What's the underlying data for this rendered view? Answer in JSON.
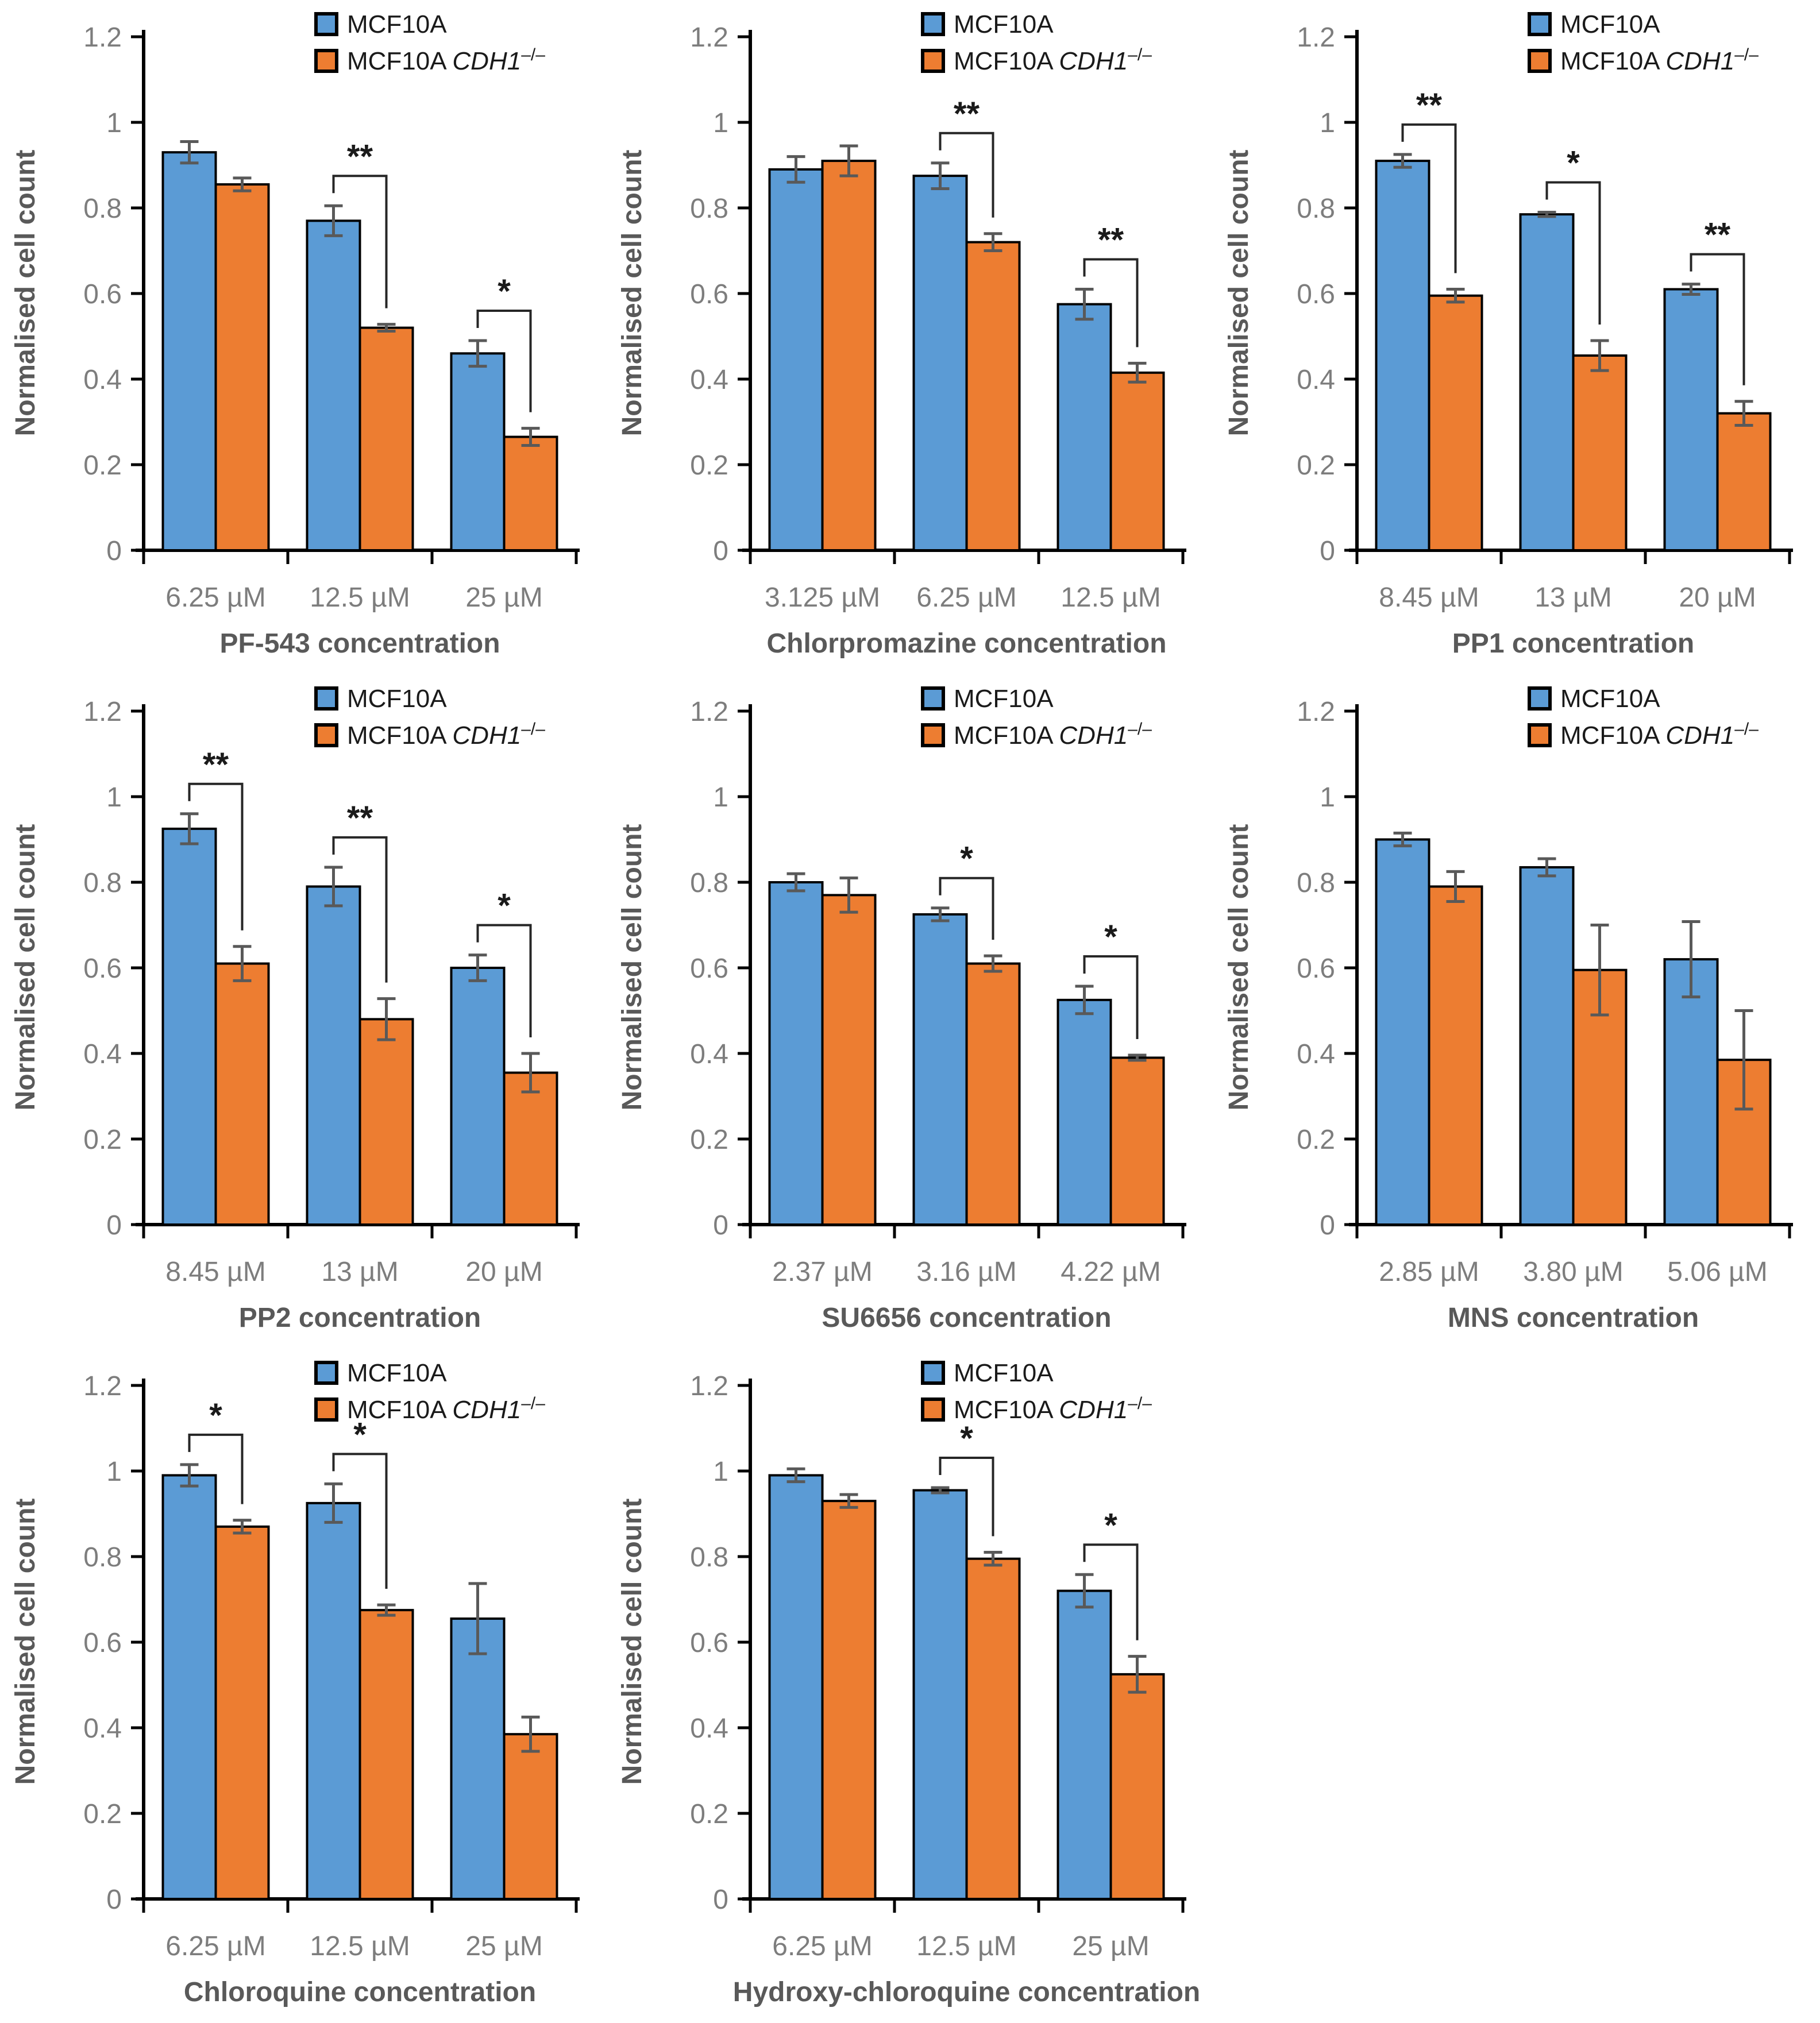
{
  "figure": {
    "ylabel": "Normalised cell count",
    "ylim": [
      0,
      1.2
    ],
    "ytick_step": 0.2,
    "yticks": [
      0,
      0.2,
      0.4,
      0.6,
      0.8,
      1,
      1.2
    ],
    "legend": {
      "series1_label": "MCF10A",
      "series2_prefix": "MCF10A ",
      "series2_gene": "CDH1",
      "series2_superscript": "–/–",
      "position": "top-right"
    },
    "colors": {
      "mcf10a_bar": "#5B9BD5",
      "cdh1_ko_bar": "#ED7D31",
      "bar_outline": "#000000",
      "error_bar": "#595959",
      "axis_line": "#000000",
      "tick_text": "#7D7D7D",
      "axis_title_text": "#595959",
      "legend_text": "#1A1A1A",
      "significance_bracket": "#262626"
    }
  },
  "chart_data": [
    {
      "type": "bar",
      "xlabel": "PF-543 concentration",
      "ylabel": "Normalised cell count",
      "ylim": [
        0,
        1.2
      ],
      "categories": [
        "6.25 µM",
        "12.5 µM",
        "25 µM"
      ],
      "series": [
        {
          "name": "MCF10A",
          "values": [
            0.93,
            0.77,
            0.46
          ],
          "errors": [
            0.025,
            0.035,
            0.03
          ]
        },
        {
          "name": "MCF10A CDH1–/–",
          "values": [
            0.855,
            0.52,
            0.265
          ],
          "errors": [
            0.015,
            0.008,
            0.02
          ]
        }
      ],
      "significance": [
        null,
        "**",
        "*"
      ]
    },
    {
      "type": "bar",
      "xlabel": "Chlorpromazine concentration",
      "ylabel": "Normalised cell count",
      "ylim": [
        0,
        1.2
      ],
      "categories": [
        "3.125 µM",
        "6.25 µM",
        "12.5 µM"
      ],
      "series": [
        {
          "name": "MCF10A",
          "values": [
            0.89,
            0.875,
            0.575
          ],
          "errors": [
            0.03,
            0.03,
            0.035
          ]
        },
        {
          "name": "MCF10A CDH1–/–",
          "values": [
            0.91,
            0.72,
            0.415
          ],
          "errors": [
            0.035,
            0.02,
            0.022
          ]
        }
      ],
      "significance": [
        null,
        "**",
        "**"
      ]
    },
    {
      "type": "bar",
      "xlabel": "PP1 concentration",
      "ylabel": "Normalised cell count",
      "ylim": [
        0,
        1.2
      ],
      "categories": [
        "8.45 µM",
        "13 µM",
        "20 µM"
      ],
      "series": [
        {
          "name": "MCF10A",
          "values": [
            0.91,
            0.785,
            0.61
          ],
          "errors": [
            0.015,
            0.005,
            0.012
          ]
        },
        {
          "name": "MCF10A CDH1–/–",
          "values": [
            0.595,
            0.455,
            0.32
          ],
          "errors": [
            0.015,
            0.035,
            0.028
          ]
        }
      ],
      "significance": [
        "**",
        "*",
        "**"
      ]
    },
    {
      "type": "bar",
      "xlabel": "PP2 concentration",
      "ylabel": "Normalised cell count",
      "ylim": [
        0,
        1.2
      ],
      "categories": [
        "8.45 µM",
        "13 µM",
        "20 µM"
      ],
      "series": [
        {
          "name": "MCF10A",
          "values": [
            0.925,
            0.79,
            0.6
          ],
          "errors": [
            0.035,
            0.045,
            0.03
          ]
        },
        {
          "name": "MCF10A CDH1–/–",
          "values": [
            0.61,
            0.48,
            0.355
          ],
          "errors": [
            0.04,
            0.048,
            0.045
          ]
        }
      ],
      "significance": [
        "**",
        "**",
        "*"
      ]
    },
    {
      "type": "bar",
      "xlabel": "SU6656 concentration",
      "ylabel": "Normalised cell count",
      "ylim": [
        0,
        1.2
      ],
      "categories": [
        "2.37 µM",
        "3.16 µM",
        "4.22 µM"
      ],
      "series": [
        {
          "name": "MCF10A",
          "values": [
            0.8,
            0.725,
            0.525
          ],
          "errors": [
            0.02,
            0.015,
            0.032
          ]
        },
        {
          "name": "MCF10A CDH1–/–",
          "values": [
            0.77,
            0.61,
            0.39
          ],
          "errors": [
            0.04,
            0.018,
            0.006
          ]
        }
      ],
      "significance": [
        null,
        "*",
        "*"
      ]
    },
    {
      "type": "bar",
      "xlabel": "MNS concentration",
      "ylabel": "Normalised cell count",
      "ylim": [
        0,
        1.2
      ],
      "categories": [
        "2.85 µM",
        "3.80 µM",
        "5.06 µM"
      ],
      "series": [
        {
          "name": "MCF10A",
          "values": [
            0.9,
            0.835,
            0.62
          ],
          "errors": [
            0.015,
            0.02,
            0.088
          ]
        },
        {
          "name": "MCF10A CDH1–/–",
          "values": [
            0.79,
            0.595,
            0.385
          ],
          "errors": [
            0.035,
            0.105,
            0.115
          ]
        }
      ],
      "significance": [
        null,
        null,
        null
      ]
    },
    {
      "type": "bar",
      "xlabel": "Chloroquine concentration",
      "ylabel": "Normalised cell count",
      "ylim": [
        0,
        1.2
      ],
      "categories": [
        "6.25 µM",
        "12.5 µM",
        "25 µM"
      ],
      "series": [
        {
          "name": "MCF10A",
          "values": [
            0.99,
            0.925,
            0.655
          ],
          "errors": [
            0.025,
            0.045,
            0.082
          ]
        },
        {
          "name": "MCF10A CDH1–/–",
          "values": [
            0.87,
            0.675,
            0.385
          ],
          "errors": [
            0.015,
            0.012,
            0.04
          ]
        }
      ],
      "significance": [
        "*",
        "*",
        null
      ]
    },
    {
      "type": "bar",
      "xlabel": "Hydroxy-chloroquine concentration",
      "ylabel": "Normalised cell count",
      "ylim": [
        0,
        1.2
      ],
      "categories": [
        "6.25 µM",
        "12.5 µM",
        "25 µM"
      ],
      "series": [
        {
          "name": "MCF10A",
          "values": [
            0.99,
            0.955,
            0.72
          ],
          "errors": [
            0.015,
            0.006,
            0.038
          ]
        },
        {
          "name": "MCF10A CDH1–/–",
          "values": [
            0.93,
            0.795,
            0.525
          ],
          "errors": [
            0.015,
            0.015,
            0.042
          ]
        }
      ],
      "significance": [
        null,
        "*",
        "*"
      ]
    }
  ]
}
